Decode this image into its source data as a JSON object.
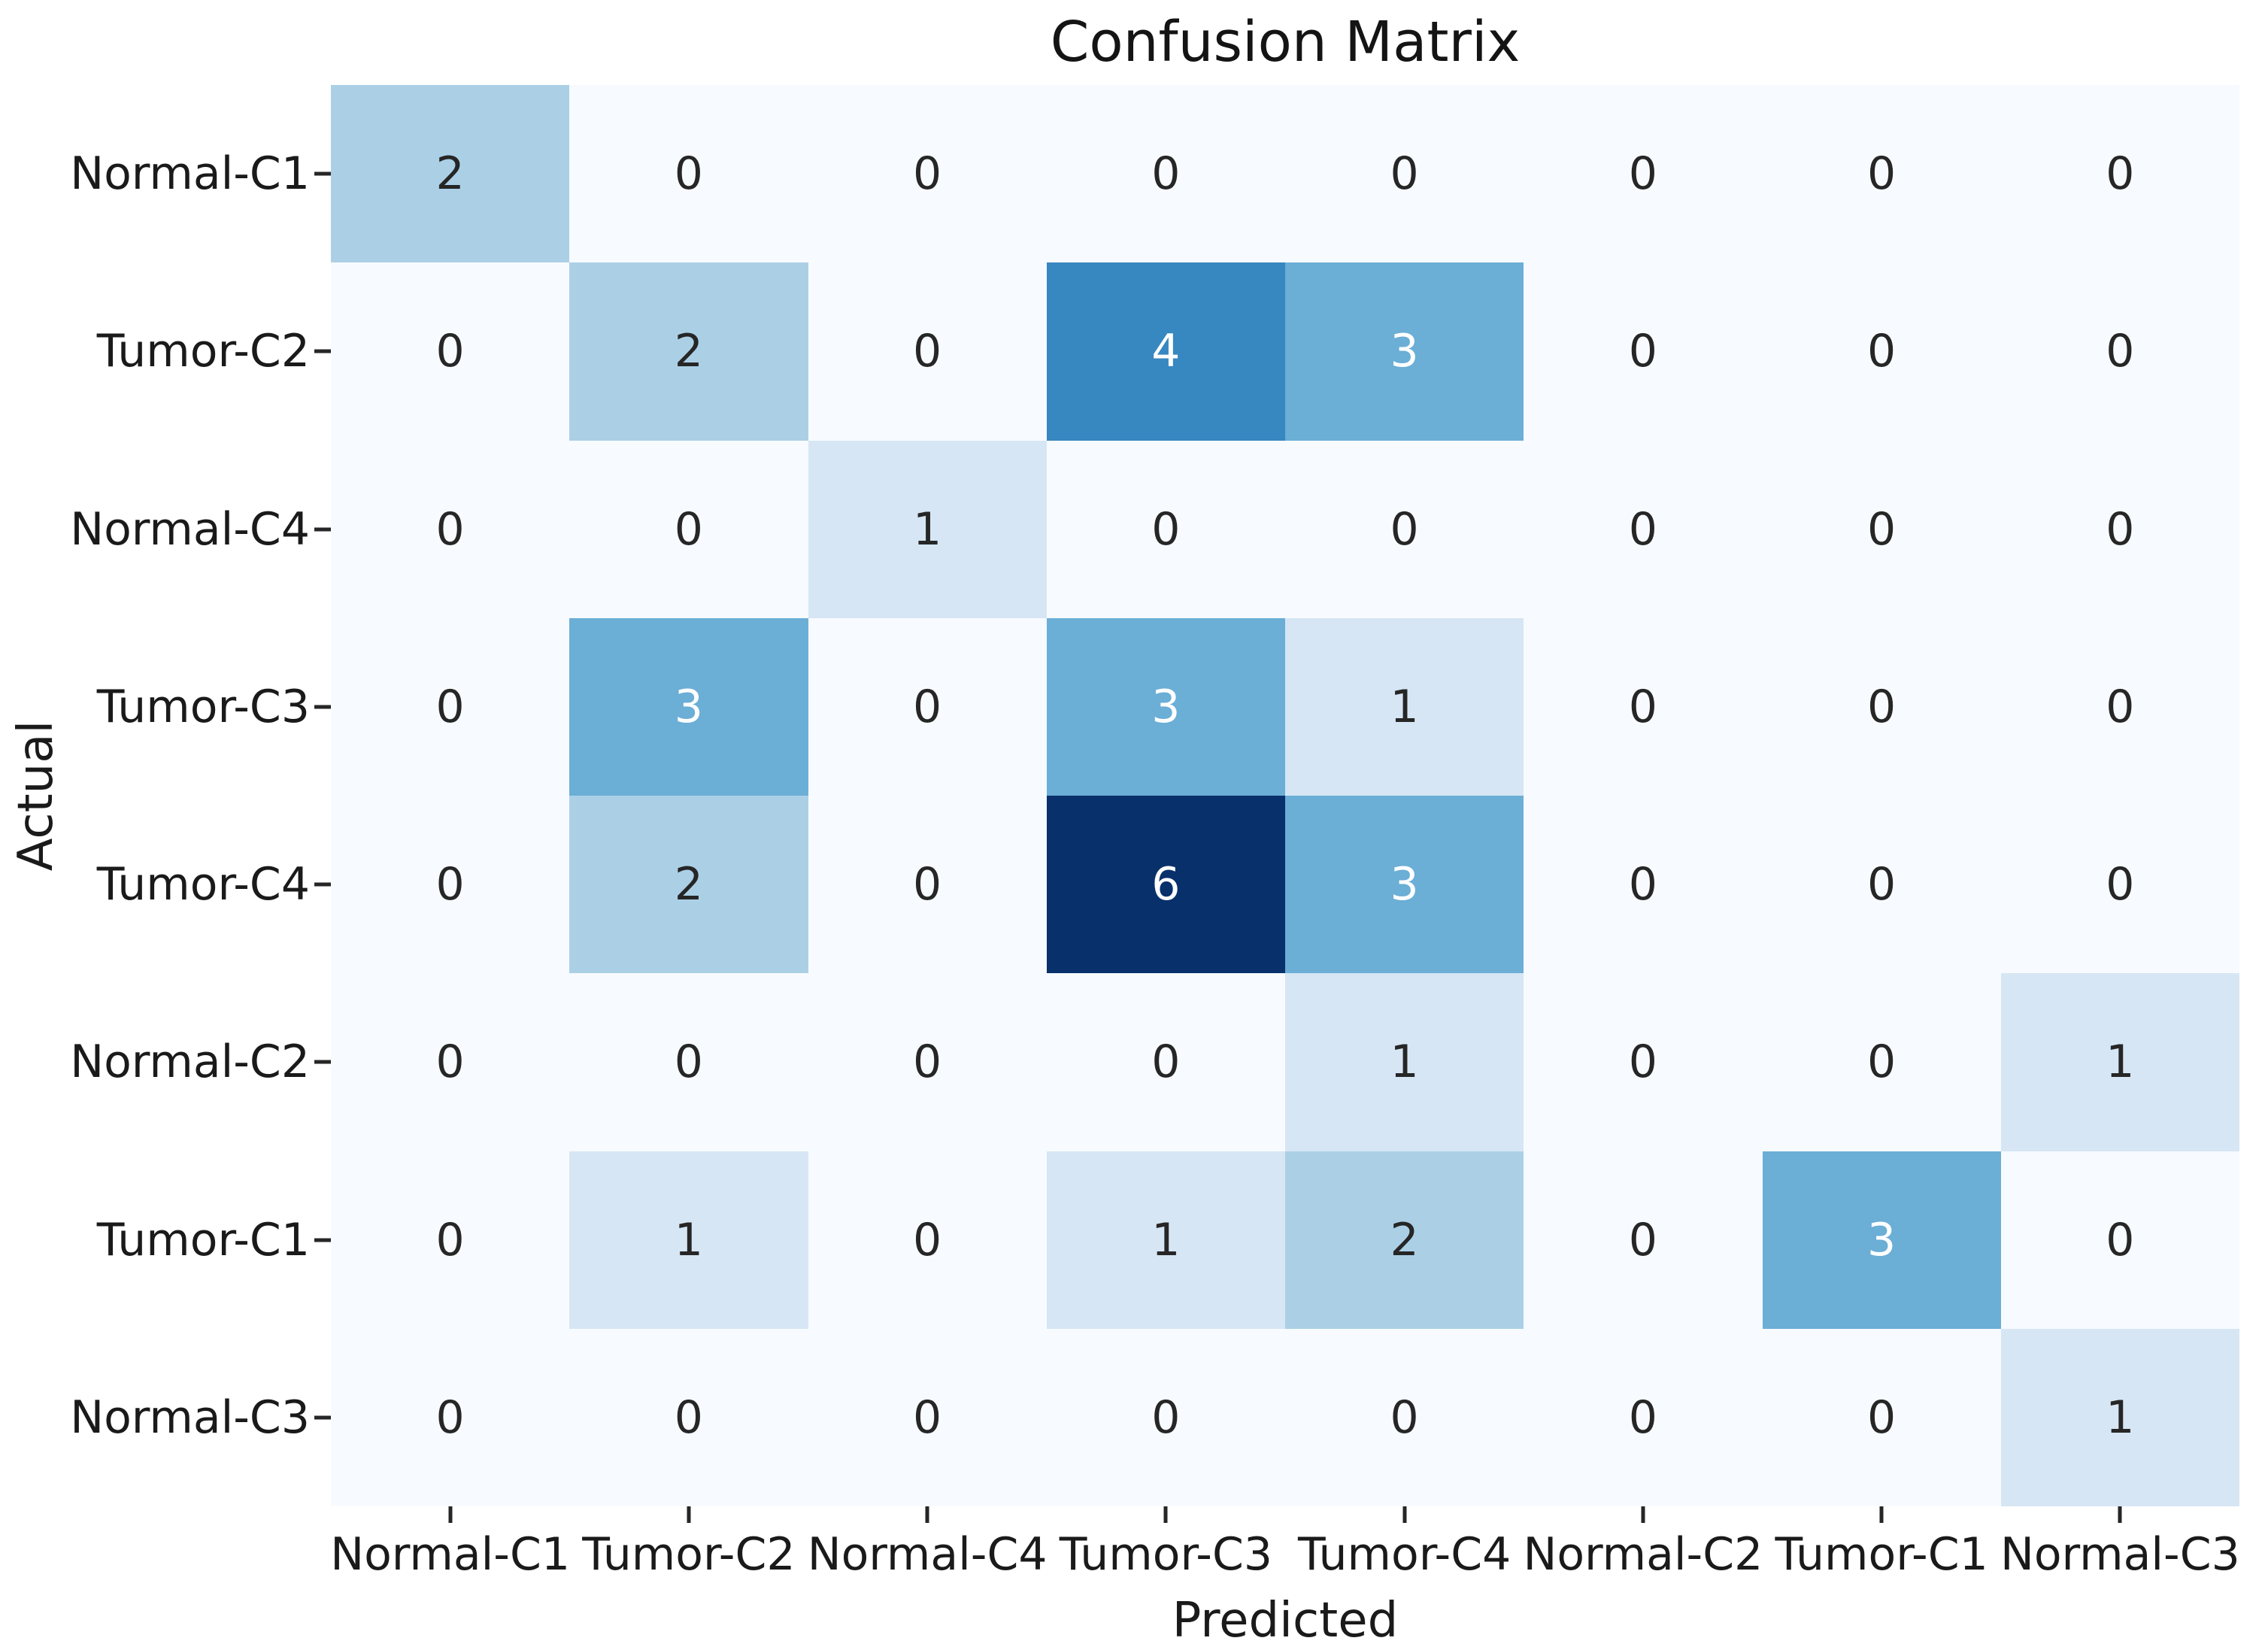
{
  "chart_data": {
    "type": "heatmap",
    "title": "Confusion Matrix",
    "xlabel": "Predicted",
    "ylabel": "Actual",
    "x_categories": [
      "Normal-C1",
      "Tumor-C2",
      "Normal-C4",
      "Tumor-C3",
      "Tumor-C4",
      "Normal-C2",
      "Tumor-C1",
      "Normal-C3"
    ],
    "y_categories": [
      "Normal-C1",
      "Tumor-C2",
      "Normal-C4",
      "Tumor-C3",
      "Tumor-C4",
      "Normal-C2",
      "Tumor-C1",
      "Normal-C3"
    ],
    "values": [
      [
        2,
        0,
        0,
        0,
        0,
        0,
        0,
        0
      ],
      [
        0,
        2,
        0,
        4,
        3,
        0,
        0,
        0
      ],
      [
        0,
        0,
        1,
        0,
        0,
        0,
        0,
        0
      ],
      [
        0,
        3,
        0,
        3,
        1,
        0,
        0,
        0
      ],
      [
        0,
        2,
        0,
        6,
        3,
        0,
        0,
        0
      ],
      [
        0,
        0,
        0,
        0,
        1,
        0,
        0,
        1
      ],
      [
        0,
        1,
        0,
        1,
        2,
        0,
        3,
        0
      ],
      [
        0,
        0,
        0,
        0,
        0,
        0,
        0,
        1
      ]
    ],
    "colormap": "Blues",
    "vmin": 0,
    "vmax": 6,
    "palette": {
      "0": "#f7fbff",
      "1": "#d6e6f4",
      "2": "#abd0e6",
      "3": "#6baed6",
      "4": "#3787c0",
      "5": "#1a5c9f",
      "6": "#08306b"
    },
    "annotation_colors": {
      "dark": "#262626",
      "light": "#ffffff"
    },
    "white_text_min": 3,
    "grid": false,
    "legend": "none",
    "colorbar": "none"
  }
}
